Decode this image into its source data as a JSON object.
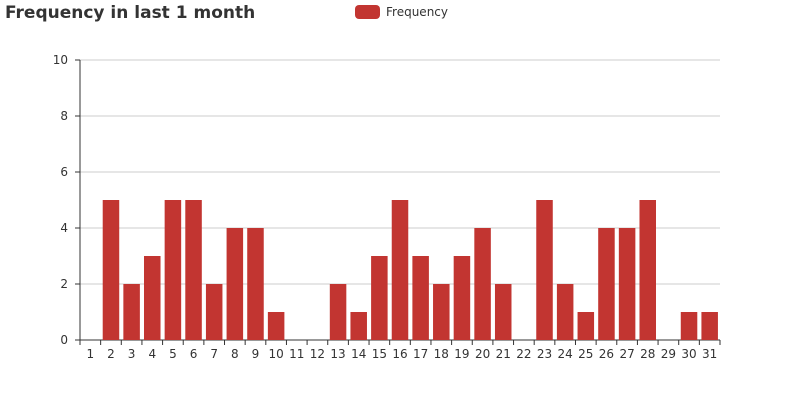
{
  "chart_data": {
    "type": "bar",
    "title": "Frequency in last 1 month",
    "xlabel": "",
    "ylabel": "",
    "categories": [
      "1",
      "2",
      "3",
      "4",
      "5",
      "6",
      "7",
      "8",
      "9",
      "10",
      "11",
      "12",
      "13",
      "14",
      "15",
      "16",
      "17",
      "18",
      "19",
      "20",
      "21",
      "22",
      "23",
      "24",
      "25",
      "26",
      "27",
      "28",
      "29",
      "30",
      "31"
    ],
    "series": [
      {
        "name": "Frequency",
        "values": [
          0,
          5,
          2,
          3,
          5,
          5,
          2,
          4,
          4,
          1,
          0,
          0,
          2,
          1,
          3,
          5,
          3,
          2,
          3,
          4,
          2,
          0,
          5,
          2,
          1,
          4,
          4,
          5,
          0,
          1,
          1
        ]
      }
    ],
    "ylim": [
      0,
      10
    ],
    "yticks": [
      "0",
      "2",
      "4",
      "6",
      "8",
      "10"
    ],
    "grid": true,
    "legend_position": "top-center",
    "bar_color": "#c23531"
  }
}
